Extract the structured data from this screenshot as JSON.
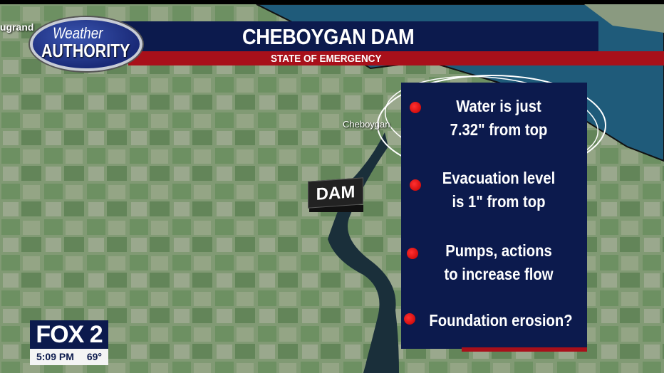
{
  "header": {
    "title": "CHEBOYGAN DAM",
    "subtitle": "STATE OF EMERGENCY"
  },
  "logo": {
    "line1": "Weather",
    "line2": "AUTHORITY"
  },
  "map": {
    "town_left": "ugrand",
    "town_cheboygan": "Cheboygan",
    "dam_label": "DAM"
  },
  "panel": {
    "bullets": [
      {
        "line1": "Water is just",
        "line2": "7.32\" from top"
      },
      {
        "line1": "Evacuation level",
        "line2": "is 1\" from top"
      },
      {
        "line1": "Pumps, actions",
        "line2": "to increase flow"
      },
      {
        "line1": "Foundation erosion?",
        "line2": ""
      }
    ]
  },
  "station": {
    "name": "FOX 2",
    "time": "5:09 PM",
    "temp": "69°"
  },
  "colors": {
    "navy": "#0c1a4d",
    "red": "#a8101a",
    "bullet": "#e00000"
  }
}
